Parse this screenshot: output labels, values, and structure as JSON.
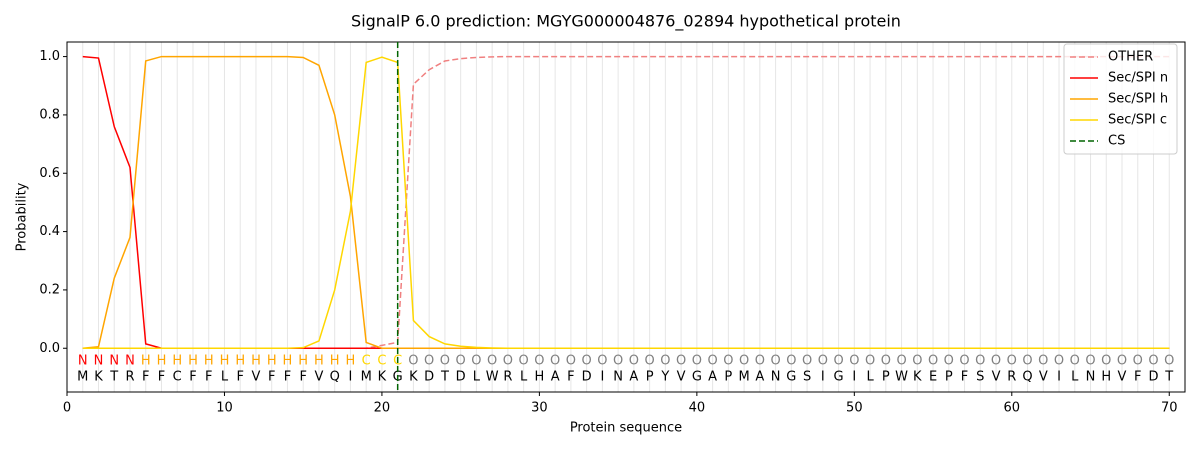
{
  "chart_data": {
    "type": "line",
    "title": "SignalP 6.0 prediction: MGYG000004876_02894 hypothetical protein",
    "xlabel": "Protein sequence",
    "ylabel": "Probability",
    "x": [
      1,
      2,
      3,
      4,
      5,
      6,
      7,
      8,
      9,
      10,
      11,
      12,
      13,
      14,
      15,
      16,
      17,
      18,
      19,
      20,
      21,
      22,
      23,
      24,
      25,
      26,
      27,
      28,
      29,
      30,
      31,
      32,
      33,
      34,
      35,
      36,
      37,
      38,
      39,
      40,
      41,
      42,
      43,
      44,
      45,
      46,
      47,
      48,
      49,
      50,
      51,
      52,
      53,
      54,
      55,
      56,
      57,
      58,
      59,
      60,
      61,
      62,
      63,
      64,
      65,
      66,
      67,
      68,
      69,
      70
    ],
    "sequence": [
      "M",
      "K",
      "T",
      "R",
      "F",
      "F",
      "C",
      "F",
      "F",
      "L",
      "F",
      "V",
      "F",
      "F",
      "F",
      "V",
      "Q",
      "I",
      "M",
      "K",
      "G",
      "K",
      "D",
      "T",
      "D",
      "L",
      "W",
      "R",
      "L",
      "H",
      "A",
      "F",
      "D",
      "I",
      "N",
      "A",
      "P",
      "Y",
      "V",
      "G",
      "A",
      "P",
      "M",
      "A",
      "N",
      "G",
      "S",
      "I",
      "G",
      "I",
      "L",
      "P",
      "W",
      "K",
      "E",
      "P",
      "F",
      "S",
      "V",
      "R",
      "Q",
      "V",
      "I",
      "L",
      "N",
      "H",
      "V",
      "F",
      "D",
      "T"
    ],
    "region_labels": [
      "N",
      "N",
      "N",
      "N",
      "H",
      "H",
      "H",
      "H",
      "H",
      "H",
      "H",
      "H",
      "H",
      "H",
      "H",
      "H",
      "H",
      "H",
      "C",
      "C",
      "C",
      "O",
      "O",
      "O",
      "O",
      "O",
      "O",
      "O",
      "O",
      "O",
      "O",
      "O",
      "O",
      "O",
      "O",
      "O",
      "O",
      "O",
      "O",
      "O",
      "O",
      "O",
      "O",
      "O",
      "O",
      "O",
      "O",
      "O",
      "O",
      "O",
      "O",
      "O",
      "O",
      "O",
      "O",
      "O",
      "O",
      "O",
      "O",
      "O",
      "O",
      "O",
      "O",
      "O",
      "O",
      "O",
      "O",
      "O",
      "O",
      "O"
    ],
    "region_colors": {
      "N": "#ff0000",
      "H": "#ffa500",
      "C": "#ffd700",
      "O": "#808080"
    },
    "series": [
      {
        "name": "OTHER",
        "color": "#f08080",
        "dashed": true,
        "values": [
          0,
          0,
          0,
          0,
          0,
          0,
          0,
          0,
          0,
          0,
          0,
          0,
          0,
          0,
          0,
          0,
          0,
          0,
          0,
          0.01,
          0.02,
          0.905,
          0.955,
          0.985,
          0.993,
          0.997,
          0.999,
          1,
          1,
          1,
          1,
          1,
          1,
          1,
          1,
          1,
          1,
          1,
          1,
          1,
          1,
          1,
          1,
          1,
          1,
          1,
          1,
          1,
          1,
          1,
          1,
          1,
          1,
          1,
          1,
          1,
          1,
          1,
          1,
          1,
          1,
          1,
          1,
          1,
          1,
          1,
          1,
          1,
          1,
          1
        ]
      },
      {
        "name": "Sec/SPI n",
        "color": "#ff0000",
        "dashed": false,
        "values": [
          1,
          0.995,
          0.76,
          0.62,
          0.015,
          0,
          0,
          0,
          0,
          0,
          0,
          0,
          0,
          0,
          0,
          0,
          0,
          0,
          0,
          0,
          0,
          0,
          0,
          0,
          0,
          0,
          0,
          0,
          0,
          0,
          0,
          0,
          0,
          0,
          0,
          0,
          0,
          0,
          0,
          0,
          0,
          0,
          0,
          0,
          0,
          0,
          0,
          0,
          0,
          0,
          0,
          0,
          0,
          0,
          0,
          0,
          0,
          0,
          0,
          0,
          0,
          0,
          0,
          0,
          0,
          0,
          0,
          0,
          0,
          0
        ]
      },
      {
        "name": "Sec/SPI h",
        "color": "#ffa500",
        "dashed": false,
        "values": [
          0,
          0.005,
          0.24,
          0.38,
          0.985,
          1,
          1,
          1,
          1,
          1,
          1,
          1,
          1,
          1,
          0.997,
          0.97,
          0.8,
          0.52,
          0.02,
          0,
          0,
          0,
          0,
          0,
          0,
          0,
          0,
          0,
          0,
          0,
          0,
          0,
          0,
          0,
          0,
          0,
          0,
          0,
          0,
          0,
          0,
          0,
          0,
          0,
          0,
          0,
          0,
          0,
          0,
          0,
          0,
          0,
          0,
          0,
          0,
          0,
          0,
          0,
          0,
          0,
          0,
          0,
          0,
          0,
          0,
          0,
          0,
          0,
          0,
          0
        ]
      },
      {
        "name": "Sec/SPI c",
        "color": "#ffd700",
        "dashed": false,
        "values": [
          0,
          0,
          0,
          0,
          0,
          0,
          0,
          0,
          0,
          0,
          0,
          0,
          0,
          0,
          0.002,
          0.025,
          0.2,
          0.47,
          0.98,
          0.998,
          0.98,
          0.095,
          0.04,
          0.015,
          0.007,
          0.003,
          0.001,
          0,
          0,
          0,
          0,
          0,
          0,
          0,
          0,
          0,
          0,
          0,
          0,
          0,
          0,
          0,
          0,
          0,
          0,
          0,
          0,
          0,
          0,
          0,
          0,
          0,
          0,
          0,
          0,
          0,
          0,
          0,
          0,
          0,
          0,
          0,
          0,
          0,
          0,
          0,
          0,
          0,
          0,
          0
        ]
      }
    ],
    "cs": {
      "name": "CS",
      "color": "#006400",
      "x": 21
    },
    "xlim": [
      0,
      71
    ],
    "ylim": [
      -0.15,
      1.05
    ],
    "xticks": [
      0,
      10,
      20,
      30,
      40,
      50,
      60,
      70
    ],
    "yticks": [
      {
        "value": 0,
        "label": "0.0"
      },
      {
        "value": 0.2,
        "label": "0.2"
      },
      {
        "value": 0.4,
        "label": "0.4"
      },
      {
        "value": 0.6,
        "label": "0.6"
      },
      {
        "value": 0.8,
        "label": "0.8"
      },
      {
        "value": 1,
        "label": "1.0"
      }
    ],
    "grid": true,
    "legend": "upper right"
  }
}
